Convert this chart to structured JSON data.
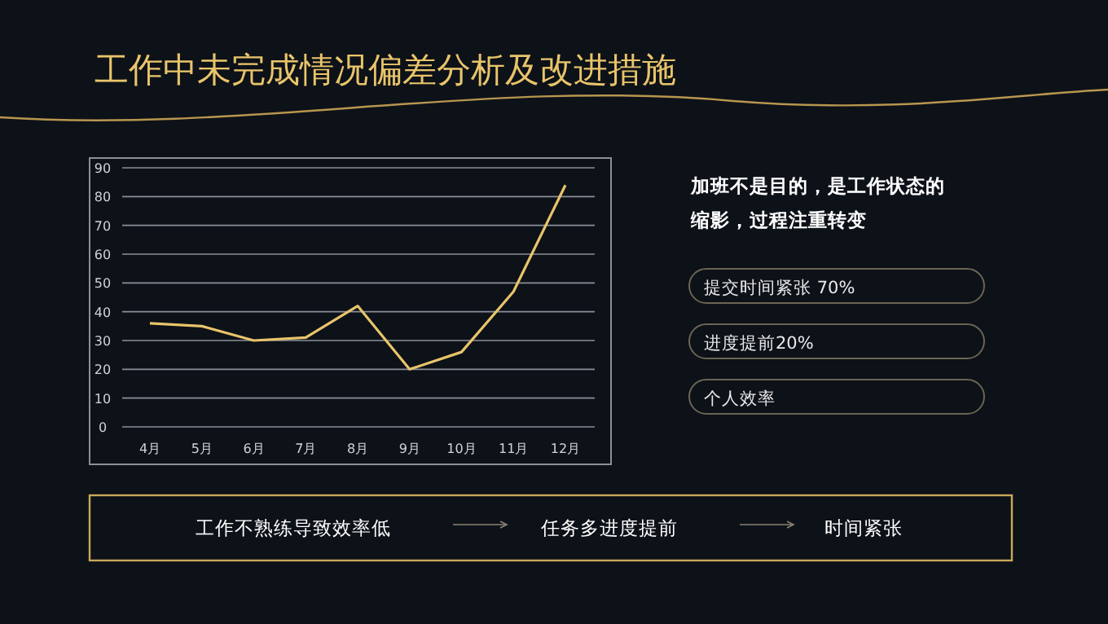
{
  "chart_data": {
    "type": "line",
    "title": "工作中未完成情况偏差分析及改进措施",
    "categories": [
      "4月",
      "5月",
      "6月",
      "7月",
      "8月",
      "9月",
      "10月",
      "11月",
      "12月"
    ],
    "values": [
      36,
      35,
      30,
      31,
      42,
      20,
      26,
      47,
      84
    ],
    "color": "#e8c46a",
    "ylim": [
      0,
      90
    ],
    "yticks": [
      0,
      10,
      20,
      30,
      40,
      50,
      60,
      70,
      80,
      90
    ],
    "grid": "y",
    "marker": "none",
    "line_style": "solid",
    "annotations": [
      "加班不是目的，是工作状态的缩影，过程注重转变",
      "提交时间紧张 70%",
      "进度提前20%",
      "个人效率",
      "工作不熟练导致效率低",
      "任务多进度提前",
      "时间紧张"
    ]
  }
}
